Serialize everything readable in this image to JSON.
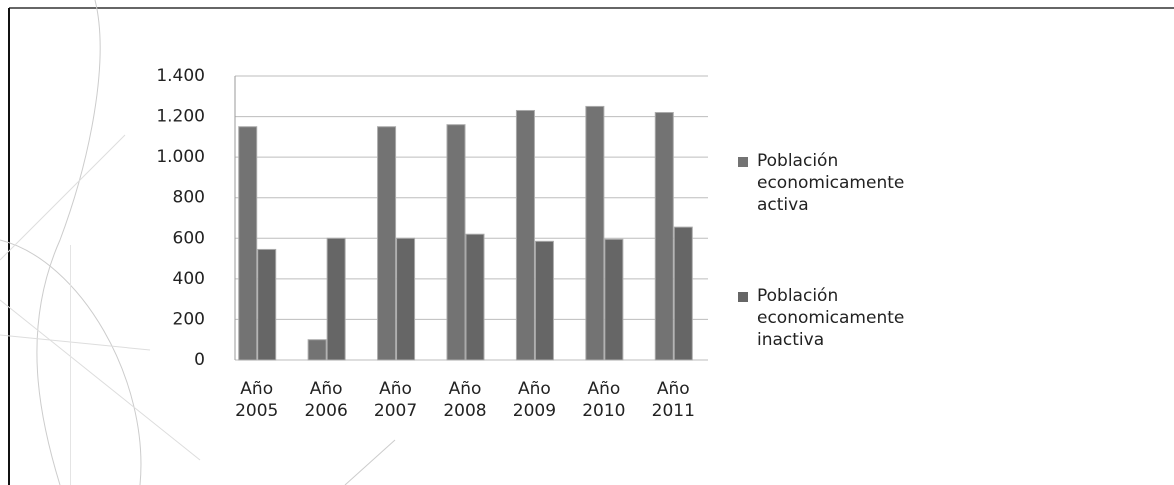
{
  "chart_data": {
    "type": "bar",
    "categories": [
      "Año 2005",
      "Año 2006",
      "Año 2007",
      "Año 2008",
      "Año 2009",
      "Año 2010",
      "Año 2011"
    ],
    "series": [
      {
        "name": "Población economicamente activa",
        "color": "#737373",
        "values": [
          1150,
          100,
          1150,
          1160,
          1230,
          1250,
          1220
        ]
      },
      {
        "name": "Población economicamente inactiva",
        "color": "#666666",
        "values": [
          545,
          600,
          600,
          620,
          585,
          595,
          655
        ]
      }
    ],
    "ylim": [
      0,
      1400
    ],
    "yticks": [
      0,
      200,
      400,
      600,
      800,
      {
        "value": 1000,
        "label": "1.000"
      },
      {
        "value": 1200,
        "label": "1.200"
      },
      {
        "value": 1400,
        "label": "1.400"
      }
    ],
    "grid": true,
    "legend": "right"
  }
}
